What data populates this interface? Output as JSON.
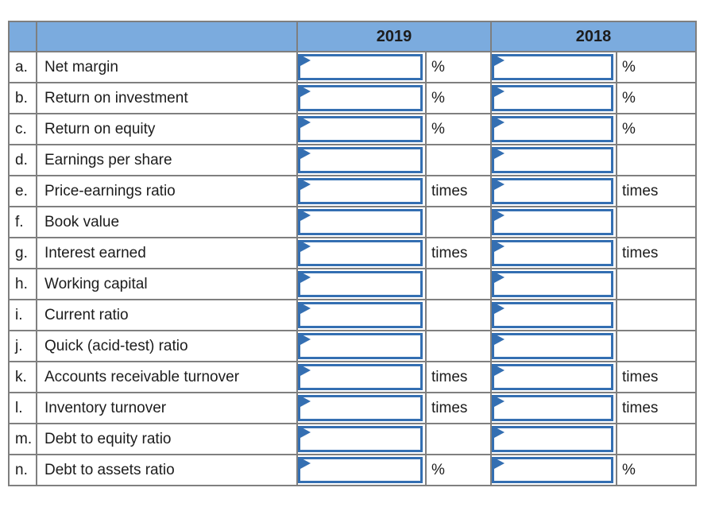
{
  "colors": {
    "header_bg": "#7babde",
    "grid_border": "#7f7f7f",
    "input_border": "#346fb2",
    "text": "#1c1c1c"
  },
  "table": {
    "years": [
      "2019",
      "2018"
    ],
    "input_placeholder": "",
    "input_value": "",
    "rows": [
      {
        "letter": "a.",
        "label": "Net margin",
        "unit": "%"
      },
      {
        "letter": "b.",
        "label": "Return on investment",
        "unit": "%"
      },
      {
        "letter": "c.",
        "label": "Return on equity",
        "unit": "%"
      },
      {
        "letter": "d.",
        "label": "Earnings per share",
        "unit": ""
      },
      {
        "letter": "e.",
        "label": "Price-earnings ratio",
        "unit": "times"
      },
      {
        "letter": "f.",
        "label": "Book value",
        "unit": ""
      },
      {
        "letter": "g.",
        "label": "Interest earned",
        "unit": "times"
      },
      {
        "letter": "h.",
        "label": "Working capital",
        "unit": ""
      },
      {
        "letter": "i.",
        "label": "Current ratio",
        "unit": ""
      },
      {
        "letter": "j.",
        "label": "Quick (acid-test) ratio",
        "unit": ""
      },
      {
        "letter": "k.",
        "label": "Accounts receivable turnover",
        "unit": "times"
      },
      {
        "letter": "l.",
        "label": "Inventory turnover",
        "unit": "times"
      },
      {
        "letter": "m.",
        "label": "Debt to equity ratio",
        "unit": ""
      },
      {
        "letter": "n.",
        "label": "Debt to assets ratio",
        "unit": "%"
      }
    ]
  }
}
